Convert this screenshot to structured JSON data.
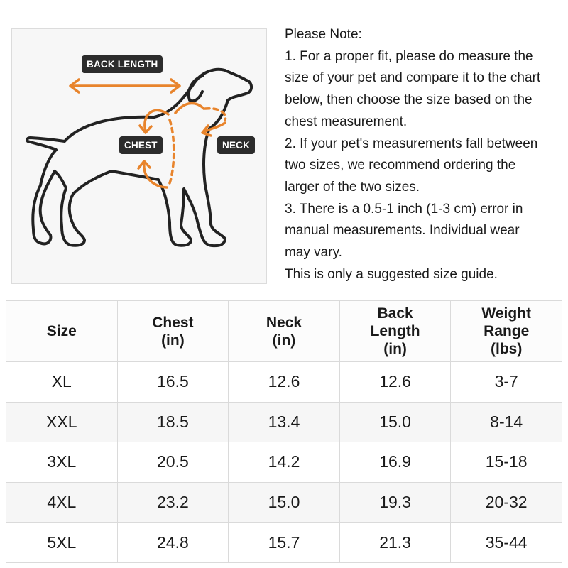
{
  "diagram": {
    "labels": {
      "back_length": "BACK LENGTH",
      "chest": "CHEST",
      "neck": "NECK"
    },
    "colors": {
      "arrow": "#e8842c",
      "outline": "#222222",
      "tag_background": "#2c2c2c"
    },
    "icons": [
      "dog-silhouette-icon",
      "back-length-arrow-icon",
      "chest-arrow-icon",
      "neck-arrow-icon"
    ]
  },
  "notes": [
    "Please Note:",
    "1. For a proper fit, please do measure the",
    "size of your pet and compare it to the chart",
    "below, then choose the size based on the",
    "chest measurement.",
    "2. If your pet's measurements fall between",
    "two sizes, we recommend ordering the",
    "larger of the two sizes.",
    "3. There is a 0.5-1 inch (1-3 cm) error in",
    "manual measurements. Individual wear",
    "may vary.",
    "This is only a suggested size guide."
  ],
  "table": {
    "headers": [
      [
        "Size"
      ],
      [
        "Chest",
        "(in)"
      ],
      [
        "Neck",
        "(in)"
      ],
      [
        "Back",
        "Length",
        "(in)"
      ],
      [
        "Weight",
        "Range",
        "(lbs)"
      ]
    ],
    "rows": [
      [
        "XL",
        "16.5",
        "12.6",
        "12.6",
        "3-7"
      ],
      [
        "XXL",
        "18.5",
        "13.4",
        "15.0",
        "8-14"
      ],
      [
        "3XL",
        "20.5",
        "14.2",
        "16.9",
        "15-18"
      ],
      [
        "4XL",
        "23.2",
        "15.0",
        "19.3",
        "20-32"
      ],
      [
        "5XL",
        "24.8",
        "15.7",
        "21.3",
        "35-44"
      ]
    ]
  }
}
